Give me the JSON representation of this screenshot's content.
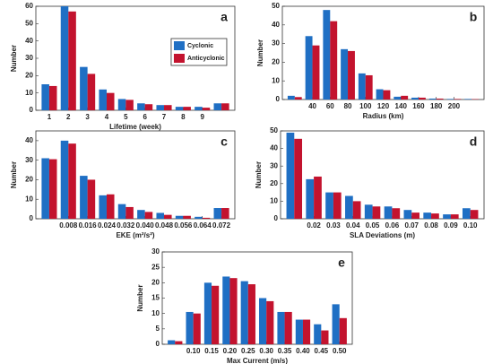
{
  "chart_data": [
    {
      "type": "bar",
      "label": "a",
      "xlabel": "Lifetime (week)",
      "ylabel": "Number",
      "legend": true,
      "categories": [
        "1",
        "2",
        "3",
        "4",
        "5",
        "6",
        "7",
        "8",
        "9",
        null
      ],
      "series": [
        {
          "name": "Cyclonic",
          "color": "#1f6fc4",
          "values": [
            15,
            60,
            25,
            12,
            6.5,
            4,
            3,
            2,
            2,
            4
          ]
        },
        {
          "name": "Anticyclonic",
          "color": "#c3132e",
          "values": [
            14,
            57,
            21,
            10,
            6,
            3.5,
            3,
            2,
            1.5,
            4
          ]
        }
      ],
      "ylim": [
        0,
        60
      ],
      "yticks": [
        0,
        10,
        20,
        30,
        40,
        50,
        60
      ]
    },
    {
      "type": "bar",
      "label": "b",
      "xlabel": "Radius (km)",
      "ylabel": "Number",
      "categories": [
        null,
        "40",
        "60",
        "80",
        "100",
        "120",
        "140",
        "160",
        "180",
        "200",
        null
      ],
      "series": [
        {
          "color": "#1f6fc4",
          "values": [
            2,
            34,
            48,
            27,
            14,
            5.5,
            1.5,
            1,
            0.5,
            0.3,
            0.3
          ]
        },
        {
          "color": "#c3132e",
          "values": [
            1.3,
            29,
            42,
            26,
            13,
            5,
            2,
            1,
            0.5,
            0.3,
            0.2
          ]
        }
      ],
      "ylim": [
        0,
        50
      ],
      "yticks": [
        0,
        10,
        20,
        30,
        40,
        50
      ]
    },
    {
      "type": "bar",
      "label": "c",
      "xlabel": "EKE (m²/s²)",
      "ylabel": "Number",
      "categories": [
        null,
        "0.008",
        "0.016",
        "0.024",
        "0.032",
        "0.040",
        "0.048",
        "0.056",
        "0.064",
        "0.072"
      ],
      "series": [
        {
          "color": "#1f6fc4",
          "values": [
            31,
            40,
            22,
            12,
            7.5,
            4.5,
            3,
            1.5,
            1,
            5.5
          ]
        },
        {
          "color": "#c3132e",
          "values": [
            30.5,
            38.5,
            20,
            12.5,
            6,
            3.5,
            2,
            1.5,
            0.5,
            5.5
          ]
        }
      ],
      "ylim": [
        0,
        45
      ],
      "yticks": [
        0,
        10,
        20,
        30,
        40
      ]
    },
    {
      "type": "bar",
      "label": "d",
      "xlabel": "SLA Deviations (m)",
      "ylabel": "Number",
      "categories": [
        null,
        "0.02",
        "0.03",
        "0.04",
        "0.05",
        "0.06",
        "0.07",
        "0.08",
        "0.09",
        "0.10"
      ],
      "series": [
        {
          "color": "#1f6fc4",
          "values": [
            49,
            22.5,
            15,
            13,
            8,
            7,
            5,
            3.5,
            2.5,
            6
          ]
        },
        {
          "color": "#c3132e",
          "values": [
            45.5,
            24,
            15,
            10,
            7,
            6,
            3.5,
            3,
            2.5,
            5
          ]
        }
      ],
      "ylim": [
        0,
        50
      ],
      "yticks": [
        0,
        10,
        20,
        30,
        40,
        50
      ]
    },
    {
      "type": "bar",
      "label": "e",
      "xlabel": "Max Current (m/s)",
      "ylabel": "Number",
      "categories": [
        null,
        "0.10",
        "0.15",
        "0.20",
        "0.25",
        "0.30",
        "0.35",
        "0.40",
        "0.45",
        "0.50"
      ],
      "series": [
        {
          "color": "#1f6fc4",
          "values": [
            1.3,
            10.5,
            20,
            22,
            20.5,
            15,
            10.5,
            8,
            6.5,
            13
          ]
        },
        {
          "color": "#c3132e",
          "values": [
            1,
            10,
            19,
            21.5,
            19.5,
            14,
            10.5,
            8,
            4.5,
            8.5
          ]
        }
      ],
      "ylim": [
        0,
        30
      ],
      "yticks": [
        0,
        5,
        10,
        15,
        20,
        25,
        30
      ]
    }
  ]
}
